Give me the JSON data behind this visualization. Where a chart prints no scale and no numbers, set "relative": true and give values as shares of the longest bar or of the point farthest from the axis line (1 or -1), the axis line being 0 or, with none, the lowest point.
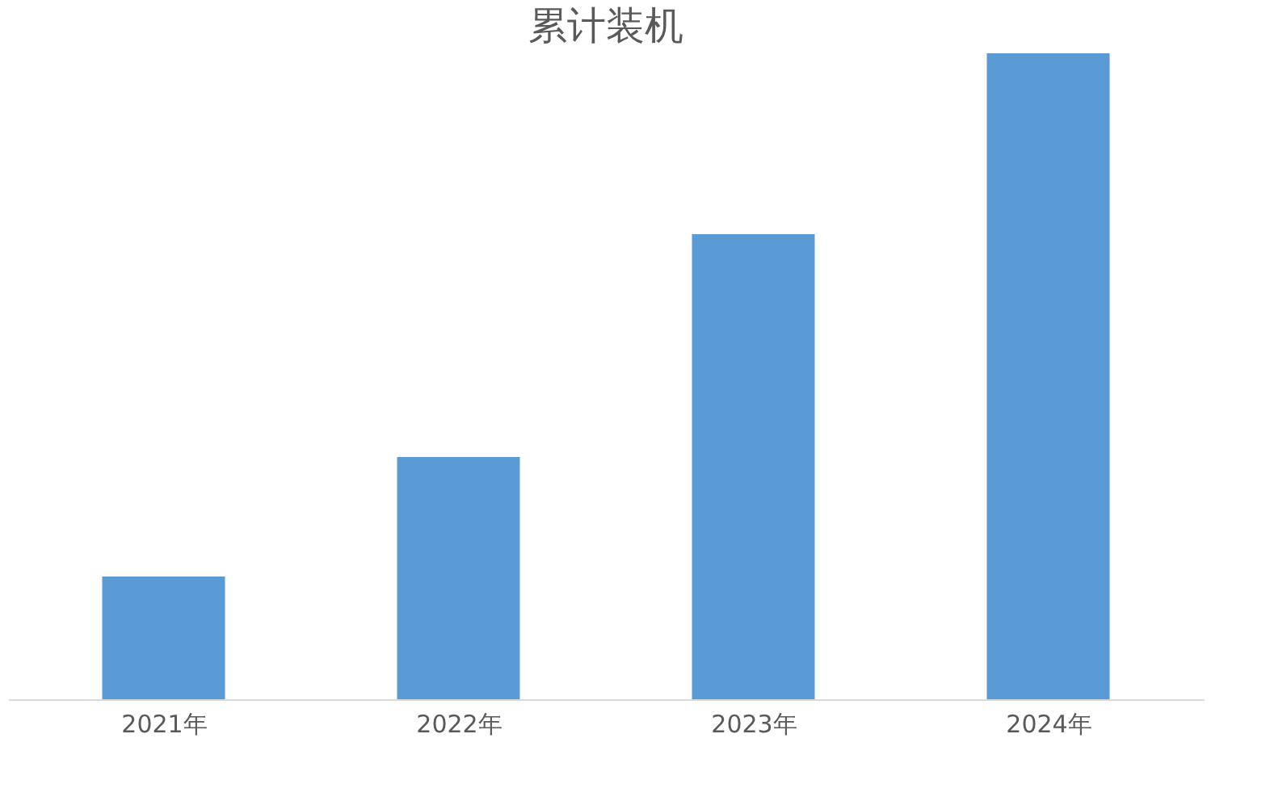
{
  "chart_data": {
    "type": "bar",
    "title": "累计装机",
    "relative": true,
    "categories": [
      "2021年",
      "2022年",
      "2023年",
      "2024年"
    ],
    "values": [
      0.19,
      0.375,
      0.72,
      1
    ],
    "color": "#5b9bd5"
  }
}
